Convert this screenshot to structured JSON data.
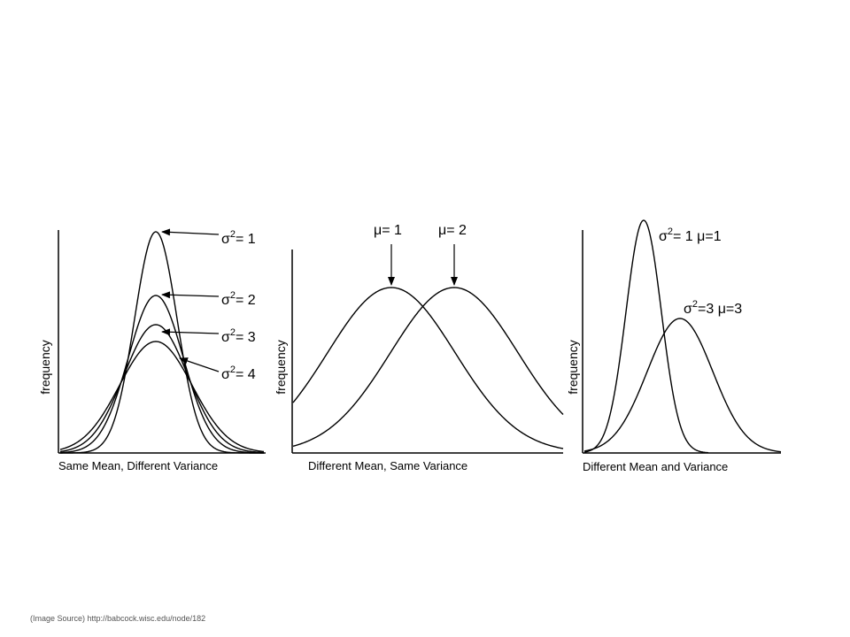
{
  "panels": [
    {
      "ylabel": "frequency",
      "xlabel": "Same Mean, Different Variance",
      "annotations": [
        {
          "symbol": "σ",
          "sup": "2",
          "text": "= 1"
        },
        {
          "symbol": "σ",
          "sup": "2",
          "text": "= 2"
        },
        {
          "symbol": "σ",
          "sup": "2",
          "text": "= 3"
        },
        {
          "symbol": "σ",
          "sup": "2",
          "text": "= 4"
        }
      ]
    },
    {
      "ylabel": "frequency",
      "xlabel": "Different Mean, Same Variance",
      "annotations": [
        {
          "symbol": "μ",
          "text": "= 1"
        },
        {
          "symbol": "μ",
          "text": "= 2"
        }
      ]
    },
    {
      "ylabel": "frequency",
      "xlabel": "Different Mean and Variance",
      "annotations": [
        {
          "symbol": "σ",
          "sup": "2",
          "text": "= 1 μ=1"
        },
        {
          "symbol": "σ",
          "sup": "2",
          "text": "=3 μ=3"
        }
      ]
    }
  ],
  "source": "(Image Source) http://babcock.wisc.edu/node/182",
  "colors": {
    "line": "#000000",
    "background": "#ffffff",
    "source_text": "#555555"
  }
}
